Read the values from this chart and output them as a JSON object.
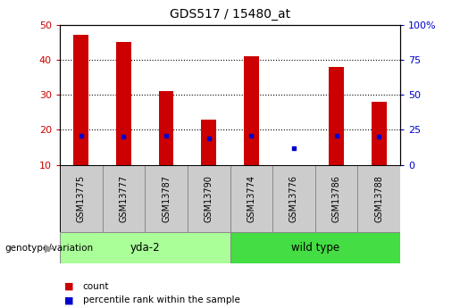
{
  "title": "GDS517 / 15480_at",
  "samples": [
    "GSM13775",
    "GSM13777",
    "GSM13787",
    "GSM13790",
    "GSM13774",
    "GSM13776",
    "GSM13786",
    "GSM13788"
  ],
  "counts": [
    47,
    45,
    31,
    23,
    41,
    10,
    38,
    28
  ],
  "percentiles": [
    21,
    20,
    21,
    19,
    21,
    12,
    21,
    20
  ],
  "groups": [
    {
      "label": "yda-2",
      "start": 0,
      "end": 4,
      "color": "#aaff99"
    },
    {
      "label": "wild type",
      "start": 4,
      "end": 8,
      "color": "#44dd44"
    }
  ],
  "ymin": 10,
  "ymax": 50,
  "yticks_left": [
    10,
    20,
    30,
    40,
    50
  ],
  "yticks_right": [
    0,
    25,
    50,
    75,
    100
  ],
  "bar_color": "#cc0000",
  "dot_color": "#0000cc",
  "bg_color": "#ffffff",
  "left_tick_color": "#cc0000",
  "right_tick_color": "#0000cc",
  "category_label": "genotype/variation",
  "legend_count": "count",
  "legend_percentile": "percentile rank within the sample"
}
